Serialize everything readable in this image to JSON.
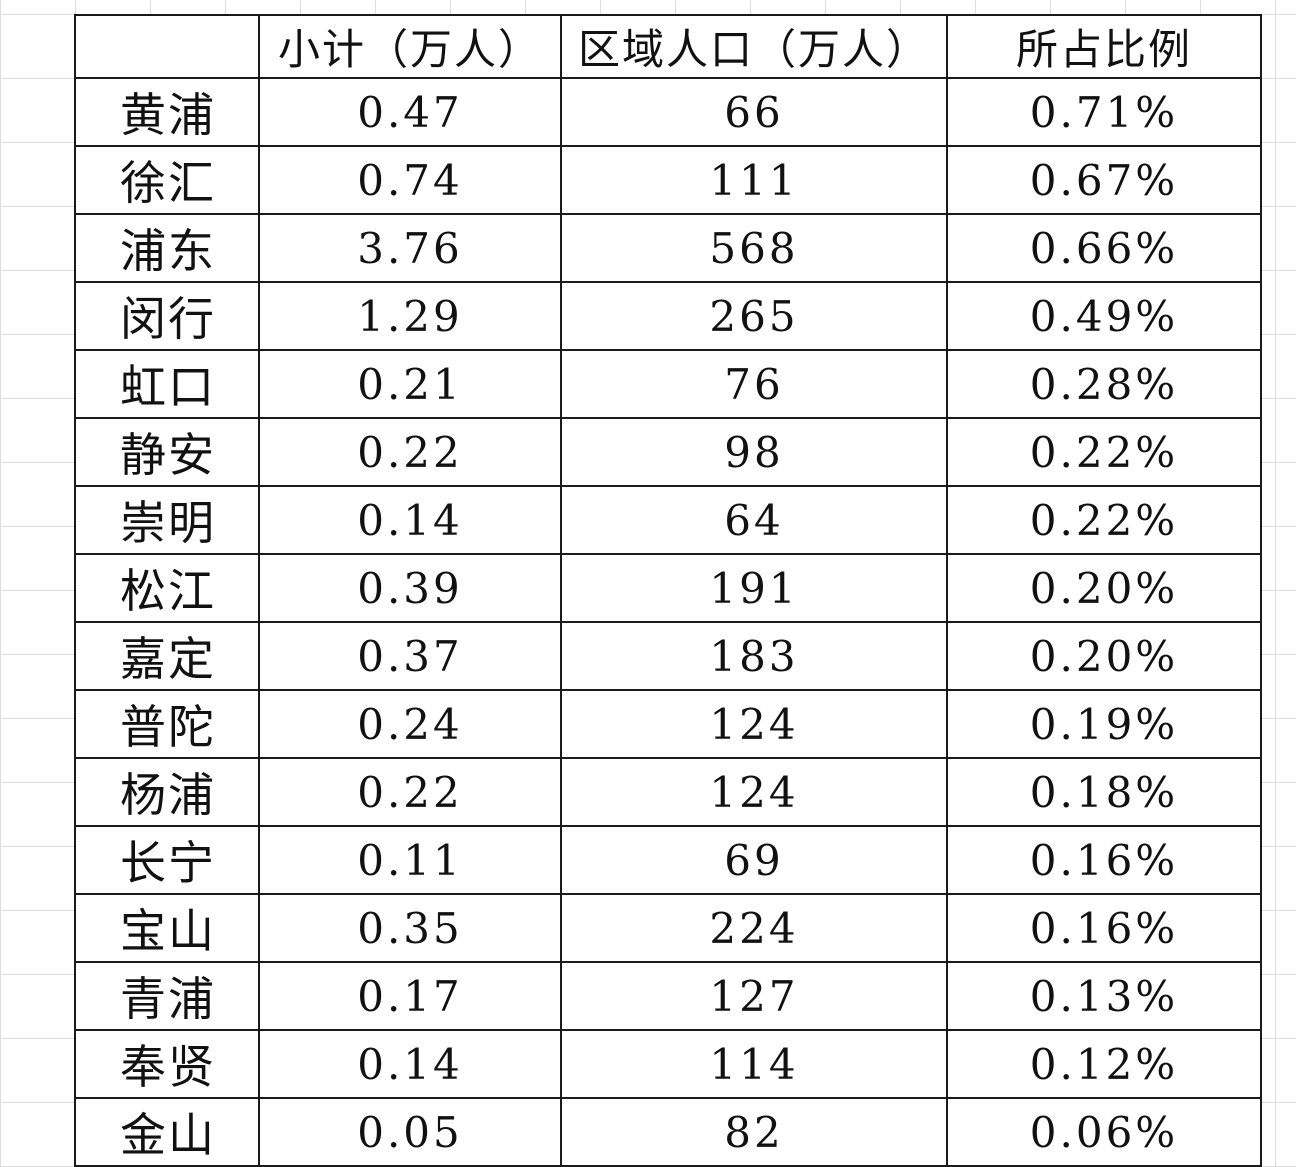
{
  "table": {
    "headers": [
      "",
      "小计（万人）",
      "区域人口（万人）",
      "所占比例"
    ],
    "rows": [
      [
        "黄浦",
        "0.47",
        "66",
        "0.71%"
      ],
      [
        "徐汇",
        "0.74",
        "111",
        "0.67%"
      ],
      [
        "浦东",
        "3.76",
        "568",
        "0.66%"
      ],
      [
        "闵行",
        "1.29",
        "265",
        "0.49%"
      ],
      [
        "虹口",
        "0.21",
        "76",
        "0.28%"
      ],
      [
        "静安",
        "0.22",
        "98",
        "0.22%"
      ],
      [
        "崇明",
        "0.14",
        "64",
        "0.22%"
      ],
      [
        "松江",
        "0.39",
        "191",
        "0.20%"
      ],
      [
        "嘉定",
        "0.37",
        "183",
        "0.20%"
      ],
      [
        "普陀",
        "0.24",
        "124",
        "0.19%"
      ],
      [
        "杨浦",
        "0.22",
        "124",
        "0.18%"
      ],
      [
        "长宁",
        "0.11",
        "69",
        "0.16%"
      ],
      [
        "宝山",
        "0.35",
        "224",
        "0.16%"
      ],
      [
        "青浦",
        "0.17",
        "127",
        "0.13%"
      ],
      [
        "奉贤",
        "0.14",
        "114",
        "0.12%"
      ],
      [
        "金山",
        "0.05",
        "82",
        "0.06%"
      ]
    ]
  }
}
